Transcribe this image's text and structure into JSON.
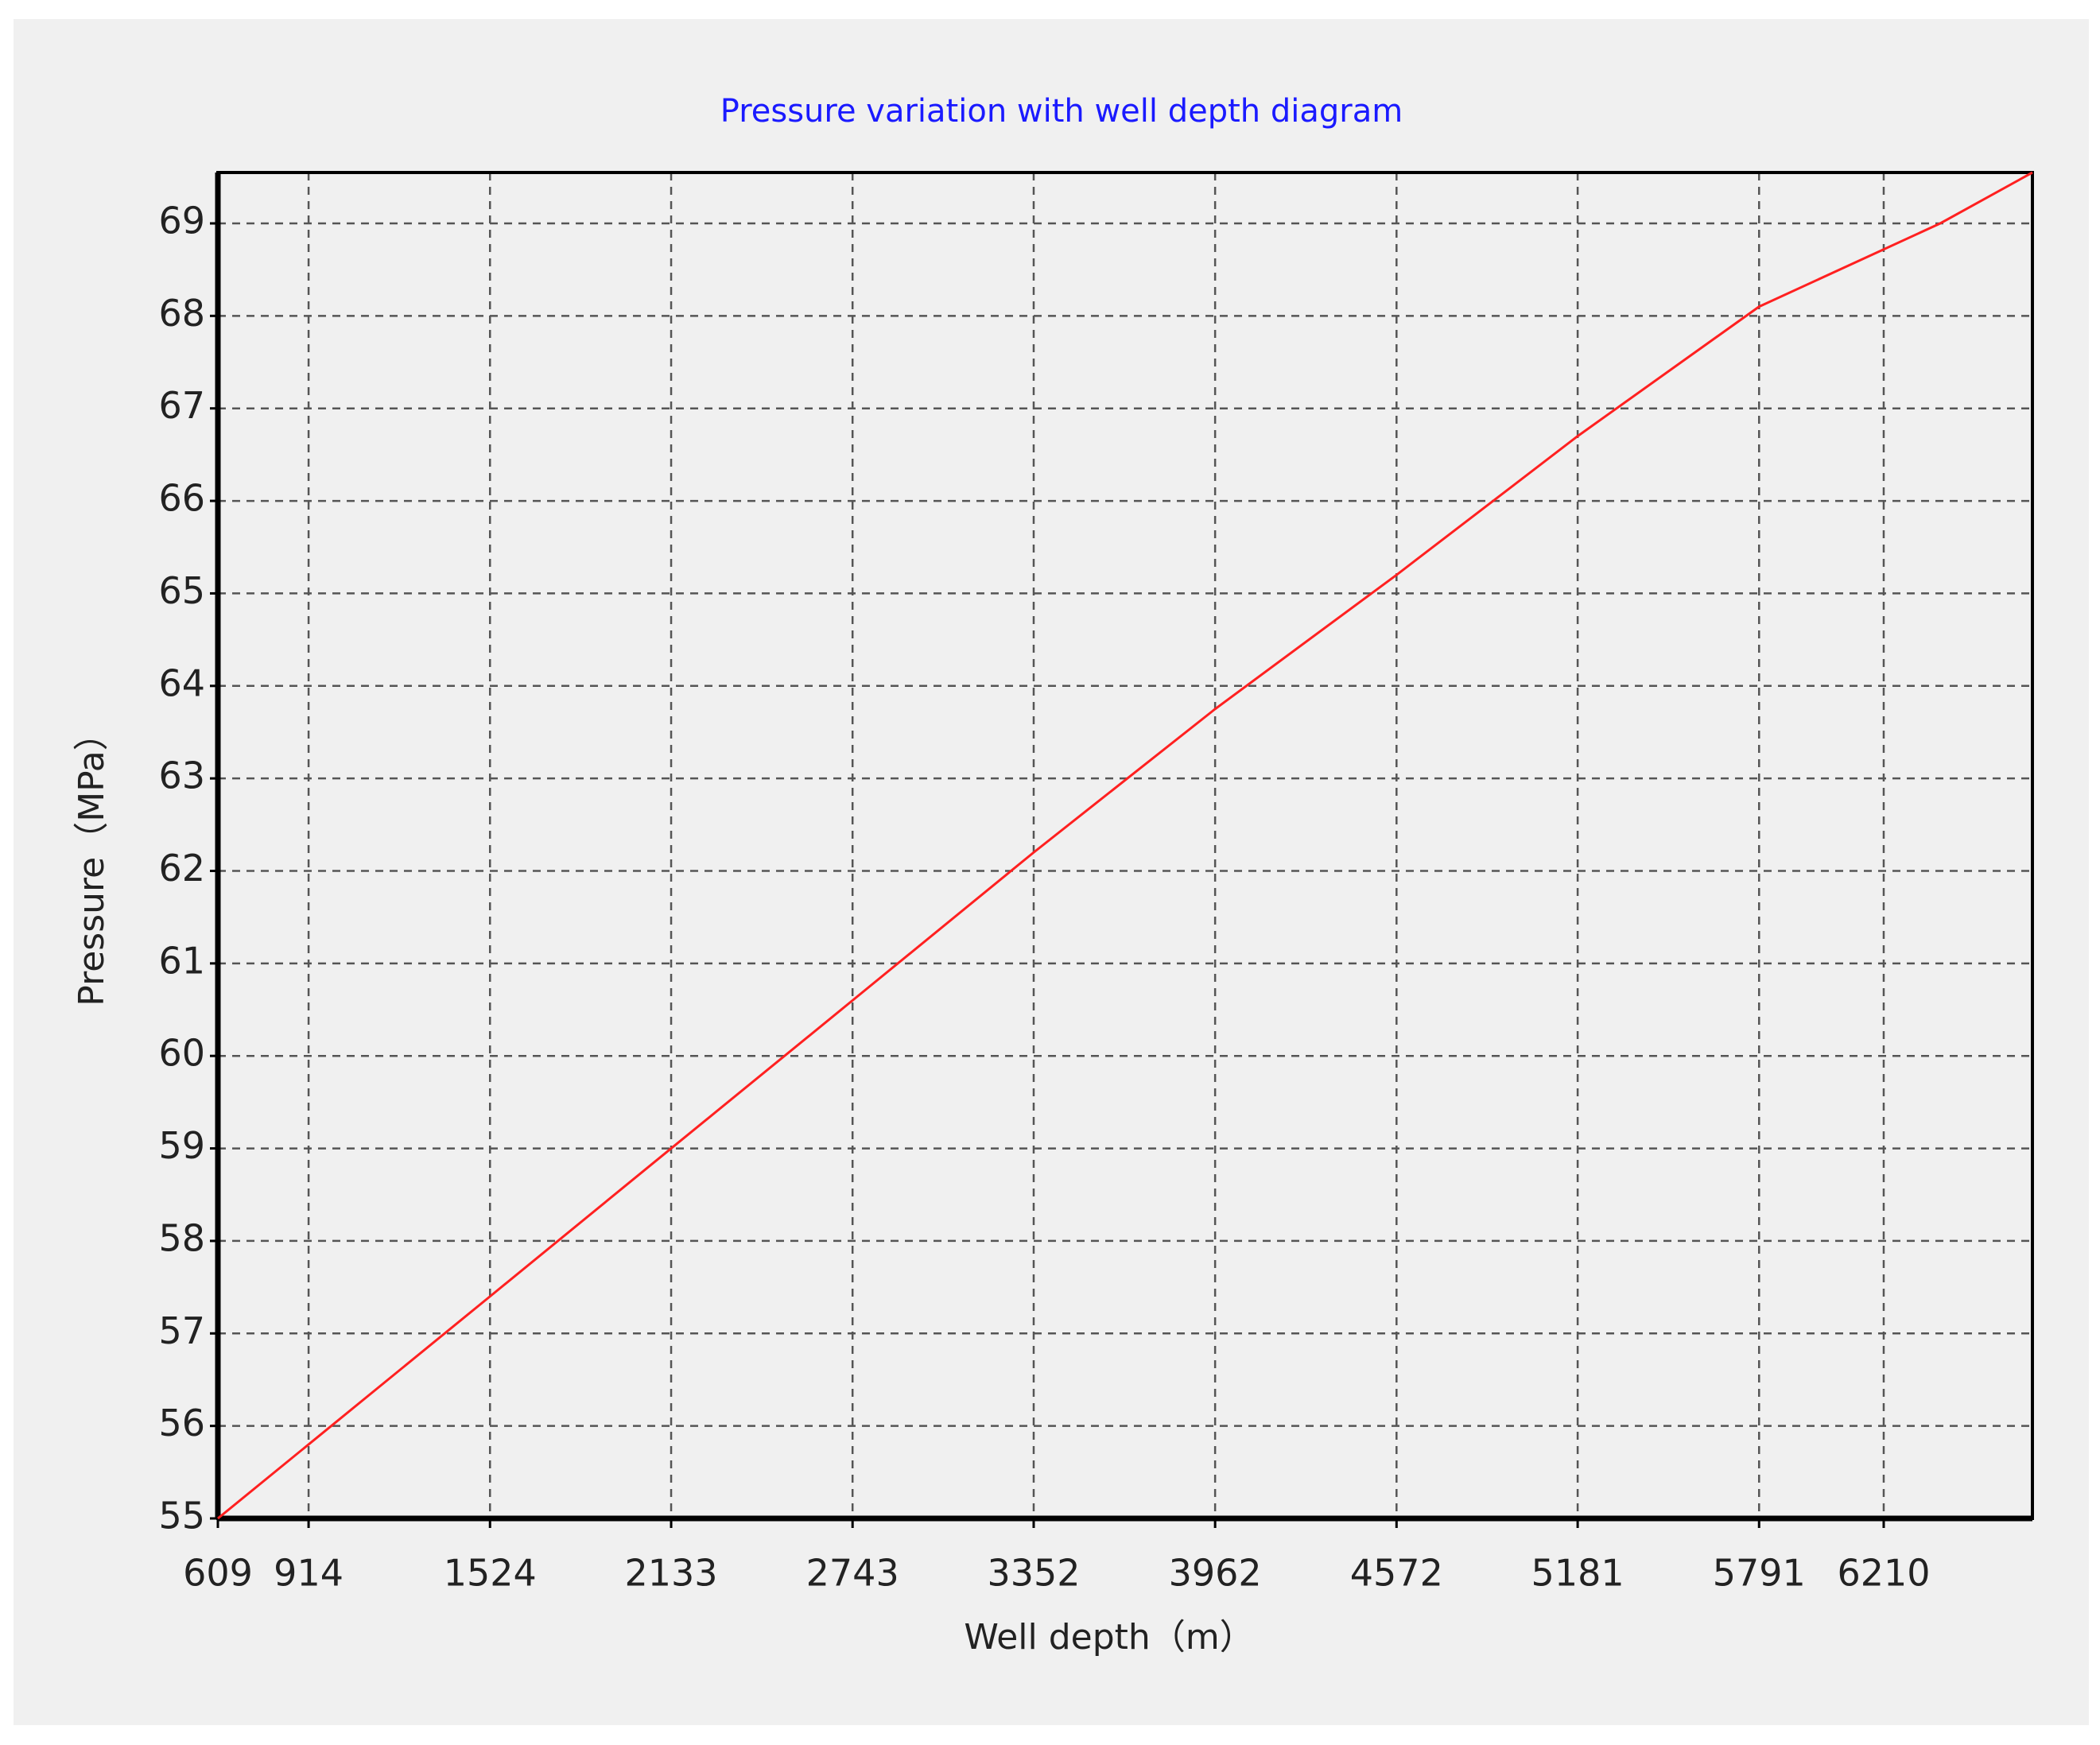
{
  "chart_data": {
    "type": "line",
    "title": "Pressure variation with well depth diagram",
    "x_label": "Well depth（m）",
    "y_label": "Pressure（MPa）",
    "x": [
      609,
      914,
      1524,
      2133,
      2743,
      3352,
      3962,
      4572,
      5181,
      5791,
      6400,
      6710
    ],
    "series": [
      {
        "name": "Pressure",
        "color": "#ff2020",
        "values": [
          55,
          55.8,
          57.4,
          59.0,
          60.6,
          62.2,
          63.75,
          65.2,
          66.7,
          68.1,
          69.0,
          69.55
        ]
      }
    ],
    "xlim": [
      609,
      6710
    ],
    "xticks": [
      609,
      914,
      1524,
      2133,
      2743,
      3352,
      3962,
      4572,
      5181,
      5791,
      6210
    ],
    "ylim": [
      55,
      69.55
    ],
    "yticks": [
      55,
      56,
      57,
      58,
      59,
      60,
      61,
      62,
      63,
      64,
      65,
      66,
      67,
      68,
      69
    ],
    "grid": true
  }
}
